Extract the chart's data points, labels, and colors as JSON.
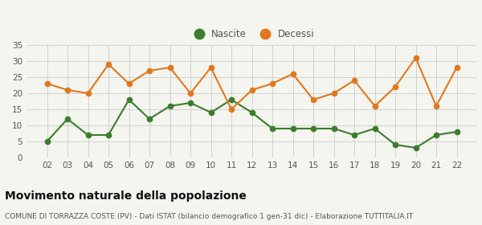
{
  "years": [
    "02",
    "03",
    "04",
    "05",
    "06",
    "07",
    "08",
    "09",
    "10",
    "11",
    "12",
    "13",
    "14",
    "15",
    "16",
    "17",
    "18",
    "19",
    "20",
    "21",
    "22"
  ],
  "nascite": [
    5,
    12,
    7,
    7,
    18,
    12,
    16,
    17,
    14,
    18,
    14,
    9,
    9,
    9,
    9,
    7,
    9,
    4,
    3,
    7,
    8
  ],
  "decessi": [
    23,
    21,
    20,
    29,
    23,
    27,
    28,
    20,
    28,
    15,
    21,
    23,
    26,
    18,
    20,
    24,
    16,
    22,
    31,
    16,
    28
  ],
  "nascite_color": "#3a7d2c",
  "decessi_color": "#e07820",
  "background_color": "#f5f5f0",
  "grid_color": "#cccccc",
  "ylim": [
    0,
    35
  ],
  "yticks": [
    0,
    5,
    10,
    15,
    20,
    25,
    30,
    35
  ],
  "title": "Movimento naturale della popolazione",
  "subtitle": "COMUNE DI TORRAZZA COSTE (PV) - Dati ISTAT (bilancio demografico 1 gen-31 dic) - Elaborazione TUTTITALIA.IT",
  "legend_nascite": "Nascite",
  "legend_decessi": "Decessi",
  "title_fontsize": 10,
  "subtitle_fontsize": 6.5,
  "tick_fontsize": 7.5,
  "legend_fontsize": 8.5,
  "marker_size": 4.5,
  "line_width": 1.5
}
